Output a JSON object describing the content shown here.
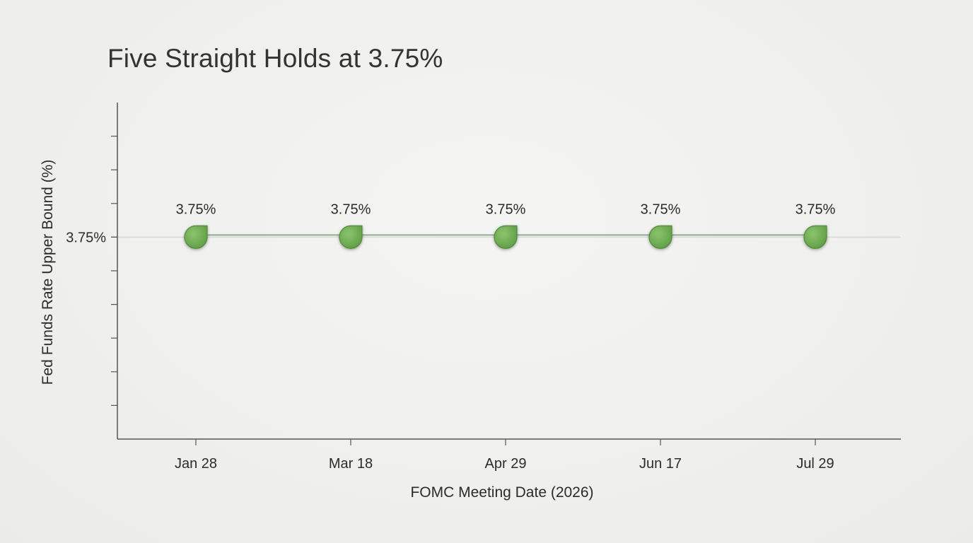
{
  "chart_data": {
    "type": "line",
    "title": "Five Straight Holds at 3.75%",
    "xlabel": "FOMC Meeting Date (2026)",
    "ylabel": "Fed Funds Rate Upper Bound (%)",
    "categories": [
      "Jan 28",
      "Mar 18",
      "Apr 29",
      "Jun 17",
      "Jul 29"
    ],
    "series": [
      {
        "values": [
          3.75,
          3.75,
          3.75,
          3.75,
          3.75
        ],
        "data_labels": [
          "3.75%",
          "3.75%",
          "3.75%",
          "3.75%",
          "3.75%"
        ]
      }
    ],
    "y_ticks": [
      {
        "value": 3.75,
        "label": "3.75%"
      }
    ],
    "ylim": [
      3.0,
      4.25
    ],
    "grid": false,
    "reference_line": 3.75,
    "colors": {
      "line": "#2f5f36",
      "marker": "#6aa84f",
      "marker_edge": "#4f8a3a",
      "axis": "#555555",
      "reference": "#d6d6d3"
    }
  }
}
